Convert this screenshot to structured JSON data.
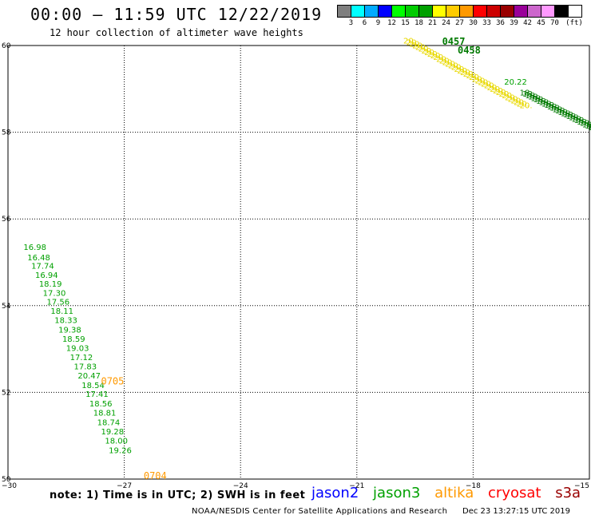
{
  "header": {
    "title": "00:00 – 11:59 UTC 12/22/2019",
    "subtitle": "12 hour collection of altimeter wave heights"
  },
  "scale": {
    "unit": "(ft)",
    "colors": [
      "#7f7f7f",
      "#00ffff",
      "#00aaff",
      "#0000ff",
      "#00ff00",
      "#00cc00",
      "#00a000",
      "#ffff00",
      "#ffcc00",
      "#ff9900",
      "#ff0000",
      "#cc0000",
      "#990000",
      "#990099",
      "#cc66cc",
      "#ff99ff",
      "#000000"
    ],
    "labels": [
      "3",
      "6",
      "9",
      "12",
      "15",
      "18",
      "21",
      "24",
      "27",
      "30",
      "33",
      "36",
      "39",
      "42",
      "45",
      "70"
    ]
  },
  "map": {
    "lon_labels": [
      "−30",
      "−27",
      "−24",
      "−21",
      "−18",
      "−15"
    ],
    "lat_labels": [
      "60",
      "58",
      "56",
      "54",
      "52",
      "50"
    ]
  },
  "observations": [
    {
      "lat": 55.29,
      "lon": -29.6,
      "value": "16.98",
      "sat": "jason3"
    },
    {
      "lat": 55.05,
      "lon": -29.5,
      "value": "16.48",
      "sat": "jason3"
    },
    {
      "lat": 54.85,
      "lon": -29.4,
      "value": "17.74",
      "sat": "jason3"
    },
    {
      "lat": 54.64,
      "lon": -29.3,
      "value": "16.94",
      "sat": "jason3"
    },
    {
      "lat": 54.44,
      "lon": -29.2,
      "value": "18.19",
      "sat": "jason3"
    },
    {
      "lat": 54.23,
      "lon": -29.1,
      "value": "17.30",
      "sat": "jason3"
    },
    {
      "lat": 54.02,
      "lon": -29.0,
      "value": "17.56",
      "sat": "jason3"
    },
    {
      "lat": 53.81,
      "lon": -28.9,
      "value": "18.11",
      "sat": "jason3"
    },
    {
      "lat": 53.6,
      "lon": -28.8,
      "value": "18.33",
      "sat": "jason3"
    },
    {
      "lat": 53.38,
      "lon": -28.7,
      "value": "19.38",
      "sat": "jason3"
    },
    {
      "lat": 53.17,
      "lon": -28.6,
      "value": "18.59",
      "sat": "jason3"
    },
    {
      "lat": 52.96,
      "lon": -28.5,
      "value": "19.03",
      "sat": "jason3"
    },
    {
      "lat": 52.74,
      "lon": -28.4,
      "value": "17.12",
      "sat": "jason3"
    },
    {
      "lat": 52.53,
      "lon": -28.3,
      "value": "17.83",
      "sat": "jason3"
    },
    {
      "lat": 52.32,
      "lon": -28.2,
      "value": "20.47",
      "sat": "jason3"
    },
    {
      "lat": 52.1,
      "lon": -28.1,
      "value": "18.54",
      "sat": "jason3"
    },
    {
      "lat": 51.9,
      "lon": -28.0,
      "value": "17.41",
      "sat": "jason3"
    },
    {
      "lat": 51.68,
      "lon": -27.9,
      "value": "18.56",
      "sat": "jason3"
    },
    {
      "lat": 51.46,
      "lon": -27.8,
      "value": "18.81",
      "sat": "jason3"
    },
    {
      "lat": 51.24,
      "lon": -27.7,
      "value": "18.74",
      "sat": "jason3"
    },
    {
      "lat": 51.03,
      "lon": -27.6,
      "value": "19.28",
      "sat": "jason3"
    },
    {
      "lat": 50.82,
      "lon": -27.5,
      "value": "18.00",
      "sat": "jason3"
    },
    {
      "lat": 50.6,
      "lon": -27.4,
      "value": "19.26",
      "sat": "jason3"
    },
    {
      "lat": 59.1,
      "lon": -17.2,
      "value": "20.22",
      "sat": "jason3"
    }
  ],
  "time_labels": [
    {
      "lat": 52.18,
      "lon": -27.6,
      "text": "0705",
      "sat": "altika"
    },
    {
      "lat": 50.0,
      "lon": -26.5,
      "text": "0704",
      "sat": "altika"
    },
    {
      "lat": 60.02,
      "lon": -18.8,
      "text": "0457",
      "sat": "jason3"
    },
    {
      "lat": 59.82,
      "lon": -18.4,
      "text": "0458",
      "sat": "jason3"
    }
  ],
  "altika_track": {
    "label_glyph": "20.",
    "start": {
      "lat": 60.05,
      "lon": -19.8
    },
    "end": {
      "lat": 58.55,
      "lon": -16.8
    },
    "count": 40
  },
  "jason3_track_ne": {
    "label_glyph": "18.",
    "start": {
      "lat": 58.85,
      "lon": -16.8
    },
    "end": {
      "lat": 58.05,
      "lon": -15.05
    },
    "count": 26
  },
  "legend": {
    "jason2": {
      "label": "jason2",
      "color": "#0000ff"
    },
    "jason3": {
      "label": "jason3",
      "color": "#00a000"
    },
    "altika": {
      "label": "altika",
      "color": "#ff9900"
    },
    "cryosat": {
      "label": "cryosat",
      "color": "#ff0000"
    },
    "s3a": {
      "label": "s3a",
      "color": "#990000"
    }
  },
  "footer": {
    "note": "note: 1) Time is in UTC; 2) SWH is in feet",
    "credit": "NOAA/NESDIS Center for Satellite Applications and Research",
    "timestamp": "Dec 23 13:27:15 UTC 2019"
  }
}
